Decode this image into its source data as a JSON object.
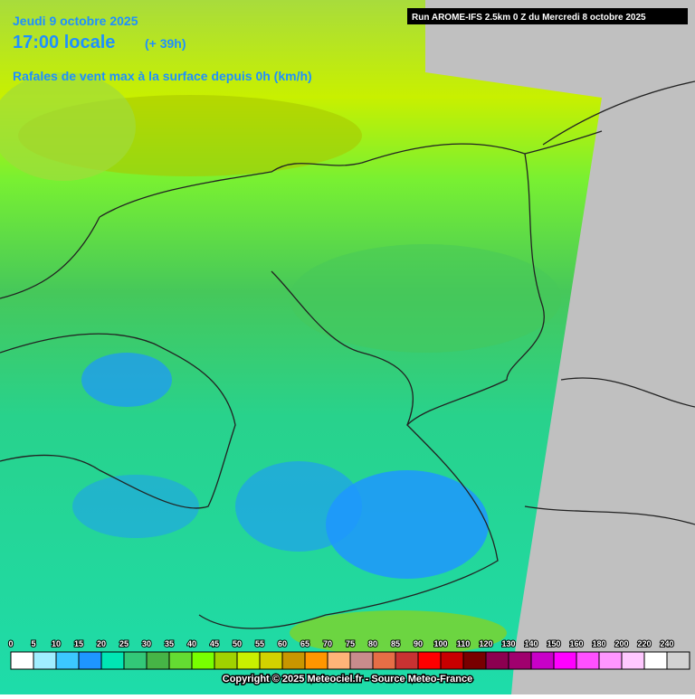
{
  "header": {
    "date": "Jeudi 9 octobre 2025",
    "time": "17:00 locale",
    "lead": "(+ 39h)",
    "parameter": "Rafales de vent max à la surface depuis 0h (km/h)",
    "run": "Run AROME-IFS 2.5km 0 Z du Mercredi 8 octobre 2025"
  },
  "legend": {
    "items": [
      {
        "value": 0,
        "color": "#ffffff"
      },
      {
        "value": 5,
        "color": "#a0eeff"
      },
      {
        "value": 10,
        "color": "#3cc8ff"
      },
      {
        "value": 15,
        "color": "#1e96ff"
      },
      {
        "value": 20,
        "color": "#00e6b4"
      },
      {
        "value": 25,
        "color": "#32c878"
      },
      {
        "value": 30,
        "color": "#46b446"
      },
      {
        "value": 35,
        "color": "#64dc32"
      },
      {
        "value": 40,
        "color": "#78ff00"
      },
      {
        "value": 45,
        "color": "#a0d200"
      },
      {
        "value": 50,
        "color": "#c8f000"
      },
      {
        "value": 55,
        "color": "#d2d200"
      },
      {
        "value": 60,
        "color": "#c89600"
      },
      {
        "value": 65,
        "color": "#ff9600"
      },
      {
        "value": 70,
        "color": "#ffb478"
      },
      {
        "value": 75,
        "color": "#c88c8c"
      },
      {
        "value": 80,
        "color": "#e66e46"
      },
      {
        "value": 85,
        "color": "#c83232"
      },
      {
        "value": 90,
        "color": "#ff0000"
      },
      {
        "value": 100,
        "color": "#c80000"
      },
      {
        "value": 110,
        "color": "#780000"
      },
      {
        "value": 120,
        "color": "#8c0050"
      },
      {
        "value": 130,
        "color": "#a0006e"
      },
      {
        "value": 140,
        "color": "#c800c8"
      },
      {
        "value": 150,
        "color": "#ff00ff"
      },
      {
        "value": 160,
        "color": "#ff50ff"
      },
      {
        "value": 180,
        "color": "#ff96ff"
      },
      {
        "value": 200,
        "color": "#ffc8ff"
      },
      {
        "value": 220,
        "color": "#ffffff"
      },
      {
        "value": 240,
        "color": "#d2d2d2"
      }
    ]
  },
  "footer": {
    "copyright": "Copyright © 2025 Meteociel.fr - Source Meteo-France"
  }
}
